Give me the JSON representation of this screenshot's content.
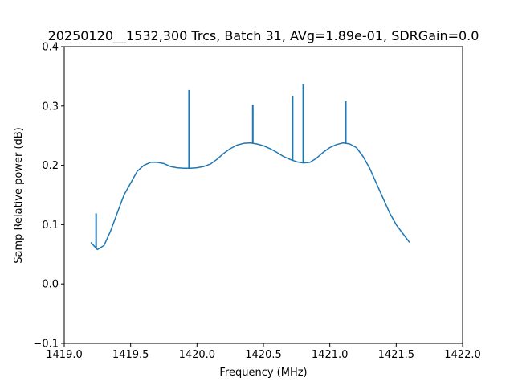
{
  "chart_data": {
    "type": "line",
    "title": "20250120__1532,300 Trcs, Batch 31, AVg=1.89e-01, SDRGain=0.0",
    "xlabel": "Frequency (MHz)",
    "ylabel": "Samp Relative power (dB)",
    "xlim": [
      1419.0,
      1422.0
    ],
    "ylim": [
      -0.1,
      0.4
    ],
    "xticks": [
      1419.0,
      1419.5,
      1420.0,
      1420.5,
      1421.0,
      1421.5,
      1422.0
    ],
    "xtick_labels": [
      "1419.0",
      "1419.5",
      "1420.0",
      "1420.5",
      "1421.0",
      "1421.5",
      "1422.0"
    ],
    "yticks": [
      -0.1,
      0.0,
      0.1,
      0.2,
      0.3,
      0.4
    ],
    "ytick_labels": [
      "−0.1",
      "0.0",
      "0.1",
      "0.2",
      "0.3",
      "0.4"
    ],
    "grid": false,
    "series": [
      {
        "color": "#1f77b4",
        "x": [
          1419.2,
          1419.25,
          1419.3,
          1419.35,
          1419.4,
          1419.45,
          1419.5,
          1419.55,
          1419.6,
          1419.65,
          1419.7,
          1419.75,
          1419.8,
          1419.85,
          1419.9,
          1419.95,
          1420.0,
          1420.05,
          1420.1,
          1420.15,
          1420.2,
          1420.25,
          1420.3,
          1420.35,
          1420.4,
          1420.45,
          1420.5,
          1420.55,
          1420.6,
          1420.65,
          1420.7,
          1420.75,
          1420.8,
          1420.85,
          1420.9,
          1420.95,
          1421.0,
          1421.05,
          1421.1,
          1421.15,
          1421.2,
          1421.25,
          1421.3,
          1421.35,
          1421.4,
          1421.45,
          1421.5,
          1421.55,
          1421.6
        ],
        "y": [
          0.07,
          0.058,
          0.065,
          0.09,
          0.12,
          0.15,
          0.17,
          0.19,
          0.2,
          0.205,
          0.205,
          0.203,
          0.198,
          0.196,
          0.195,
          0.195,
          0.196,
          0.198,
          0.202,
          0.21,
          0.22,
          0.228,
          0.234,
          0.237,
          0.238,
          0.236,
          0.233,
          0.228,
          0.222,
          0.215,
          0.21,
          0.206,
          0.204,
          0.205,
          0.212,
          0.222,
          0.23,
          0.235,
          0.238,
          0.236,
          0.23,
          0.215,
          0.195,
          0.17,
          0.145,
          0.12,
          0.1,
          0.085,
          0.07
        ]
      }
    ],
    "spikes": [
      {
        "x": 1419.24,
        "y": 0.119
      },
      {
        "x": 1419.94,
        "y": 0.327
      },
      {
        "x": 1420.42,
        "y": 0.302
      },
      {
        "x": 1420.72,
        "y": 0.317
      },
      {
        "x": 1420.8,
        "y": 0.337
      },
      {
        "x": 1421.12,
        "y": 0.308
      }
    ]
  }
}
